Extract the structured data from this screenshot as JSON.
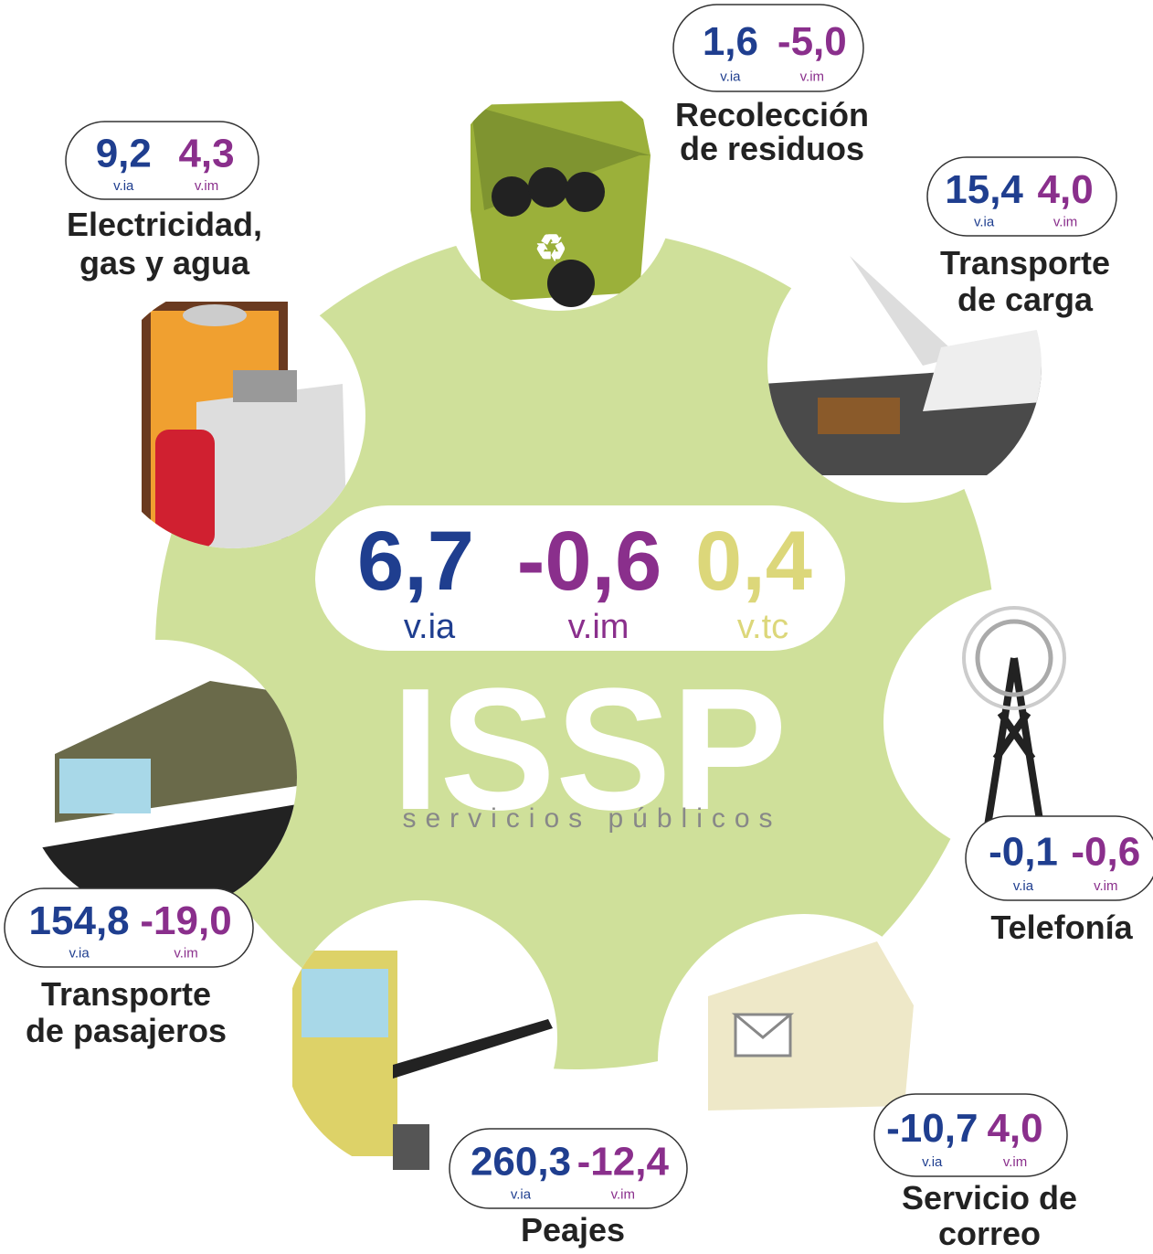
{
  "title": "ISSP",
  "subtitle": "servicios públicos",
  "labels": {
    "ia": "v.ia",
    "im": "v.im",
    "tc": "v.tc"
  },
  "center": {
    "via": "6,7",
    "vim": "-0,6",
    "vtc": "0,4"
  },
  "sectors": [
    {
      "name": [
        "Recolección",
        "de residuos"
      ],
      "via": "1,6",
      "vim": "-5,0"
    },
    {
      "name": [
        "Electricidad,",
        "gas y agua"
      ],
      "via": "9,2",
      "vim": "4,3"
    },
    {
      "name": [
        "Transporte",
        "de carga"
      ],
      "via": "15,4",
      "vim": "4,0"
    },
    {
      "name": [
        "Telefonía"
      ],
      "via": "-0,1",
      "vim": "-0,6"
    },
    {
      "name": [
        "Servicio de",
        "correo"
      ],
      "via": "-10,7",
      "vim": "4,0"
    },
    {
      "name": [
        "Peajes"
      ],
      "via": "260,3",
      "vim": "-12,4"
    },
    {
      "name": [
        "Transporte",
        "de pasajeros"
      ],
      "via": "154,8",
      "vim": "-19,0"
    }
  ]
}
